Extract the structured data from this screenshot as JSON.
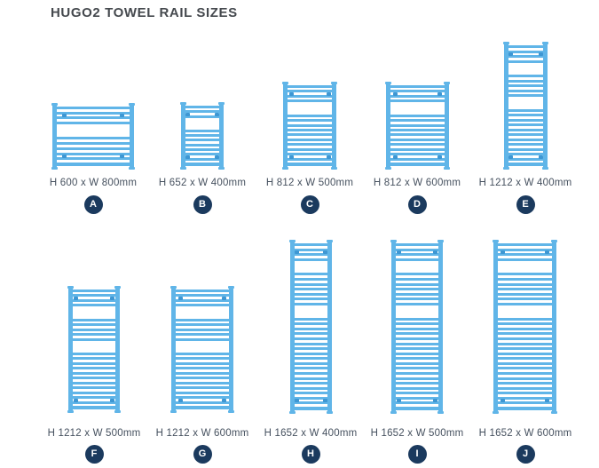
{
  "page": {
    "title": "HUGO2 TOWEL RAIL SIZES"
  },
  "colors": {
    "rail_blue": "#60b5e8",
    "bracket_blue": "#3e97d3",
    "badge_navy": "#1b3a5e",
    "title_text": "#45494e",
    "label_text": "#46515f",
    "background": "#ffffff"
  },
  "rails": [
    {
      "id": "A",
      "label": "H 600 x W 800mm",
      "badge": "A",
      "height_mm": 600,
      "width_mm": 800
    },
    {
      "id": "B",
      "label": "H 652 x W 400mm",
      "badge": "B",
      "height_mm": 652,
      "width_mm": 400
    },
    {
      "id": "C",
      "label": "H 812 x W 500mm",
      "badge": "C",
      "height_mm": 812,
      "width_mm": 500
    },
    {
      "id": "D",
      "label": "H 812 x W 600mm",
      "badge": "D",
      "height_mm": 812,
      "width_mm": 600
    },
    {
      "id": "E",
      "label": "H 1212 x W 400mm",
      "badge": "E",
      "height_mm": 1212,
      "width_mm": 400
    },
    {
      "id": "F",
      "label": "H 1212 x W 500mm",
      "badge": "F",
      "height_mm": 1212,
      "width_mm": 500
    },
    {
      "id": "G",
      "label": "H 1212 x W 600mm",
      "badge": "G",
      "height_mm": 1212,
      "width_mm": 600
    },
    {
      "id": "H",
      "label": "H 1652 x W 400mm",
      "badge": "H",
      "height_mm": 1652,
      "width_mm": 400
    },
    {
      "id": "I",
      "label": "H 1652 x W 500mm",
      "badge": "I",
      "height_mm": 1652,
      "width_mm": 500
    },
    {
      "id": "J",
      "label": "H 1652 x W 600mm",
      "badge": "J",
      "height_mm": 1652,
      "width_mm": 600
    }
  ]
}
